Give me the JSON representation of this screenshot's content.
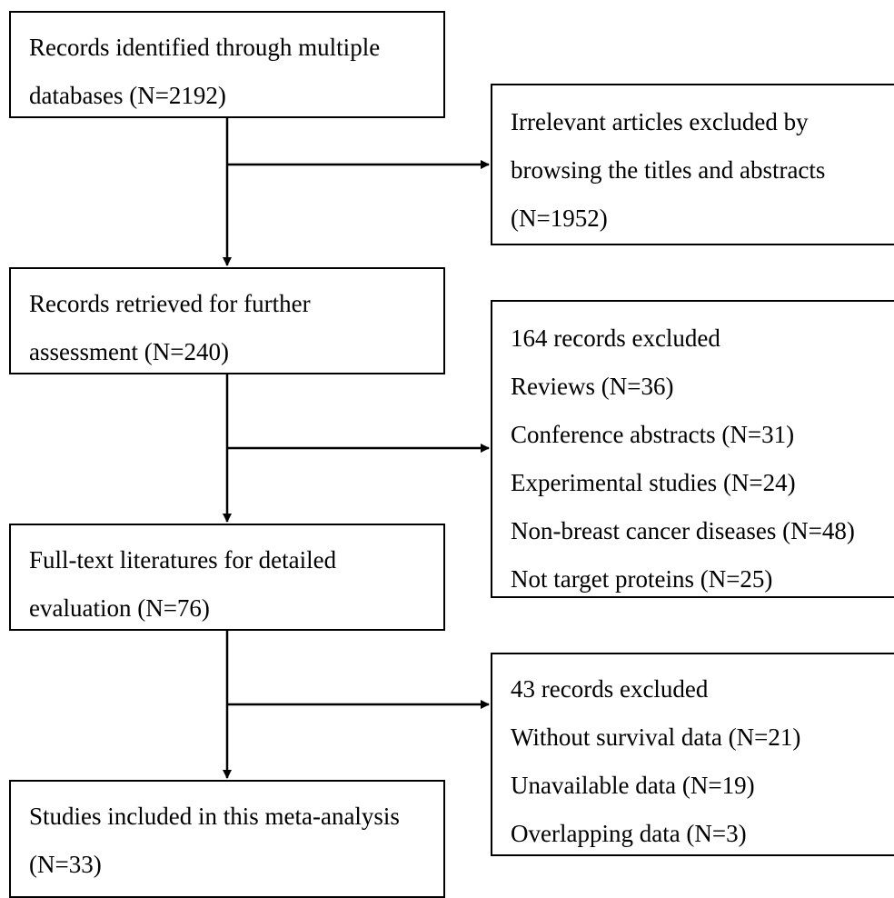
{
  "flow": {
    "main_steps": [
      {
        "lines": [
          "Records identified through multiple",
          "databases (N=2192)"
        ]
      },
      {
        "lines": [
          "Records retrieved for further",
          "assessment (N=240)"
        ]
      },
      {
        "lines": [
          "Full-text literatures for detailed",
          "evaluation (N=76)"
        ]
      },
      {
        "lines": [
          "Studies included in this meta-analysis",
          "(N=33)"
        ]
      }
    ],
    "exclusions": [
      {
        "lines": [
          "Irrelevant articles excluded by",
          "browsing the titles and abstracts",
          "(N=1952)"
        ]
      },
      {
        "lines": [
          "164 records excluded",
          "Reviews (N=36)",
          "Conference abstracts (N=31)",
          "Experimental studies (N=24)",
          "Non-breast cancer diseases (N=48)",
          "Not target proteins (N=25)"
        ]
      },
      {
        "lines": [
          "43 records excluded",
          "Without survival data (N=21)",
          "Unavailable data (N=19)",
          "Overlapping data (N=3)"
        ]
      }
    ]
  }
}
